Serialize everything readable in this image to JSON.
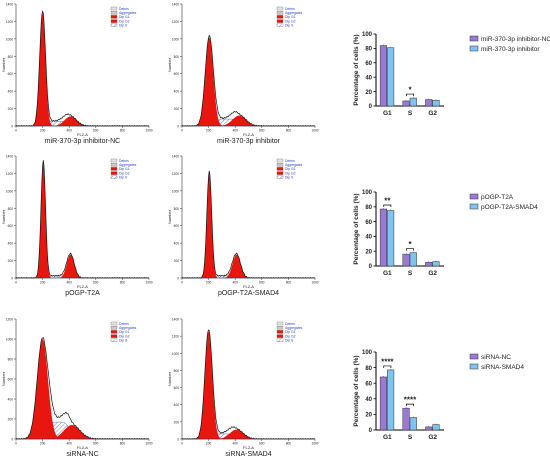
{
  "colors": {
    "peak_fill": "#e8160f",
    "hatch": "#4b63d9",
    "curve": "#111111",
    "bar_control": "#9a7ad6",
    "bar_treated": "#7ec3f2",
    "legend_text_blue": "#2b3fc7"
  },
  "flow_legend": [
    "Debris",
    "Aggregates",
    "Dip G1",
    "Dip G2",
    "Dip S"
  ],
  "flow_axes": {
    "x_label": "FL2-A",
    "y_label": "Number"
  },
  "chart_data": [
    {
      "type": "area",
      "panel": "histogram",
      "label": "miR-370-3p inhibitor-NC",
      "xlim": [
        0,
        1000
      ],
      "ylim": [
        0,
        1400
      ],
      "x_ticks": [
        0,
        200,
        400,
        600,
        800,
        1000
      ],
      "y_ticks": [
        0,
        200,
        400,
        600,
        800,
        1000,
        1200,
        1400
      ],
      "g1": {
        "center": 200,
        "height": 1300,
        "width": 22
      },
      "g2": {
        "center": 410,
        "height": 110,
        "width": 45
      },
      "s_level": 55
    },
    {
      "type": "area",
      "panel": "histogram",
      "label": "miR-370-3p inhibitor",
      "xlim": [
        0,
        1000
      ],
      "ylim": [
        0,
        1400
      ],
      "x_ticks": [
        0,
        200,
        400,
        600,
        800,
        1000
      ],
      "y_ticks": [
        0,
        200,
        400,
        600,
        800,
        1000,
        1200,
        1400
      ],
      "g1": {
        "center": 205,
        "height": 1020,
        "width": 30
      },
      "g2": {
        "center": 430,
        "height": 120,
        "width": 50
      },
      "s_level": 80
    },
    {
      "type": "bar",
      "panel": "bar",
      "categories": [
        "G1",
        "S",
        "G2"
      ],
      "ylabel": "Percentage of cells (%)",
      "ylim": [
        0,
        100
      ],
      "y_ticks": [
        0,
        20,
        40,
        60,
        80,
        100
      ],
      "series": [
        {
          "name": "miR-370-3p inhibitor-NC",
          "values": [
            84,
            7,
            9
          ]
        },
        {
          "name": "miR-370-3p inhibitor",
          "values": [
            81,
            11,
            8
          ]
        }
      ],
      "significance": [
        {
          "category": "S",
          "label": "*"
        }
      ]
    },
    {
      "type": "area",
      "panel": "histogram",
      "label": "pOGP-T2A",
      "xlim": [
        0,
        1000
      ],
      "ylim": [
        0,
        1400
      ],
      "x_ticks": [
        0,
        200,
        400,
        600,
        800,
        1000
      ],
      "y_ticks": [
        0,
        200,
        400,
        600,
        800,
        1000,
        1200,
        1400
      ],
      "g1": {
        "center": 205,
        "height": 1330,
        "width": 17
      },
      "g2": {
        "center": 410,
        "height": 270,
        "width": 28
      },
      "s_level": 25
    },
    {
      "type": "area",
      "panel": "histogram",
      "label": "pOGP-T2A-SMAD4",
      "xlim": [
        0,
        1000
      ],
      "ylim": [
        0,
        1400
      ],
      "x_ticks": [
        0,
        200,
        400,
        600,
        800,
        1000
      ],
      "y_ticks": [
        0,
        200,
        400,
        600,
        800,
        1000,
        1200,
        1400
      ],
      "g1": {
        "center": 205,
        "height": 1210,
        "width": 18
      },
      "g2": {
        "center": 410,
        "height": 270,
        "width": 30
      },
      "s_level": 25
    },
    {
      "type": "bar",
      "panel": "bar",
      "categories": [
        "G1",
        "S",
        "G2"
      ],
      "ylabel": "Percentage of cells (%)",
      "ylim": [
        0,
        100
      ],
      "y_ticks": [
        0,
        20,
        40,
        60,
        80,
        100
      ],
      "series": [
        {
          "name": "pOGP-T2A",
          "values": [
            77,
            16,
            5
          ]
        },
        {
          "name": "pOGP-T2A-SMAD4",
          "values": [
            75,
            18,
            6
          ]
        }
      ],
      "significance": [
        {
          "category": "G1",
          "label": "**"
        },
        {
          "category": "S",
          "label": "*"
        }
      ]
    },
    {
      "type": "area",
      "panel": "histogram",
      "label": "siRNA-NC",
      "xlim": [
        0,
        1000
      ],
      "ylim": [
        0,
        1200
      ],
      "x_ticks": [
        0,
        200,
        400,
        600,
        800,
        1000
      ],
      "y_ticks": [
        0,
        200,
        400,
        600,
        800,
        1000,
        1200
      ],
      "g1": {
        "center": 200,
        "height": 1000,
        "width": 40
      },
      "g2": {
        "center": 420,
        "height": 140,
        "width": 60
      },
      "s_level": 170
    },
    {
      "type": "area",
      "panel": "histogram",
      "label": "siRNA-SMAD4",
      "xlim": [
        0,
        1000
      ],
      "ylim": [
        0,
        1400
      ],
      "x_ticks": [
        0,
        200,
        400,
        600,
        800,
        1000
      ],
      "y_ticks": [
        0,
        200,
        400,
        600,
        800,
        1000,
        1200,
        1400
      ],
      "g1": {
        "center": 200,
        "height": 1260,
        "width": 28
      },
      "g2": {
        "center": 410,
        "height": 110,
        "width": 50
      },
      "s_level": 60
    },
    {
      "type": "bar",
      "panel": "bar",
      "categories": [
        "G1",
        "S",
        "G2"
      ],
      "ylabel": "Percentage of cells (%)",
      "ylim": [
        0,
        100
      ],
      "y_ticks": [
        0,
        20,
        40,
        60,
        80,
        100
      ],
      "series": [
        {
          "name": "siRNA-NC",
          "values": [
            68,
            28,
            4
          ]
        },
        {
          "name": "siRNA-SMAD4",
          "values": [
            77,
            16,
            7
          ]
        }
      ],
      "significance": [
        {
          "category": "G1",
          "label": "****"
        },
        {
          "category": "S",
          "label": "****"
        }
      ]
    }
  ]
}
